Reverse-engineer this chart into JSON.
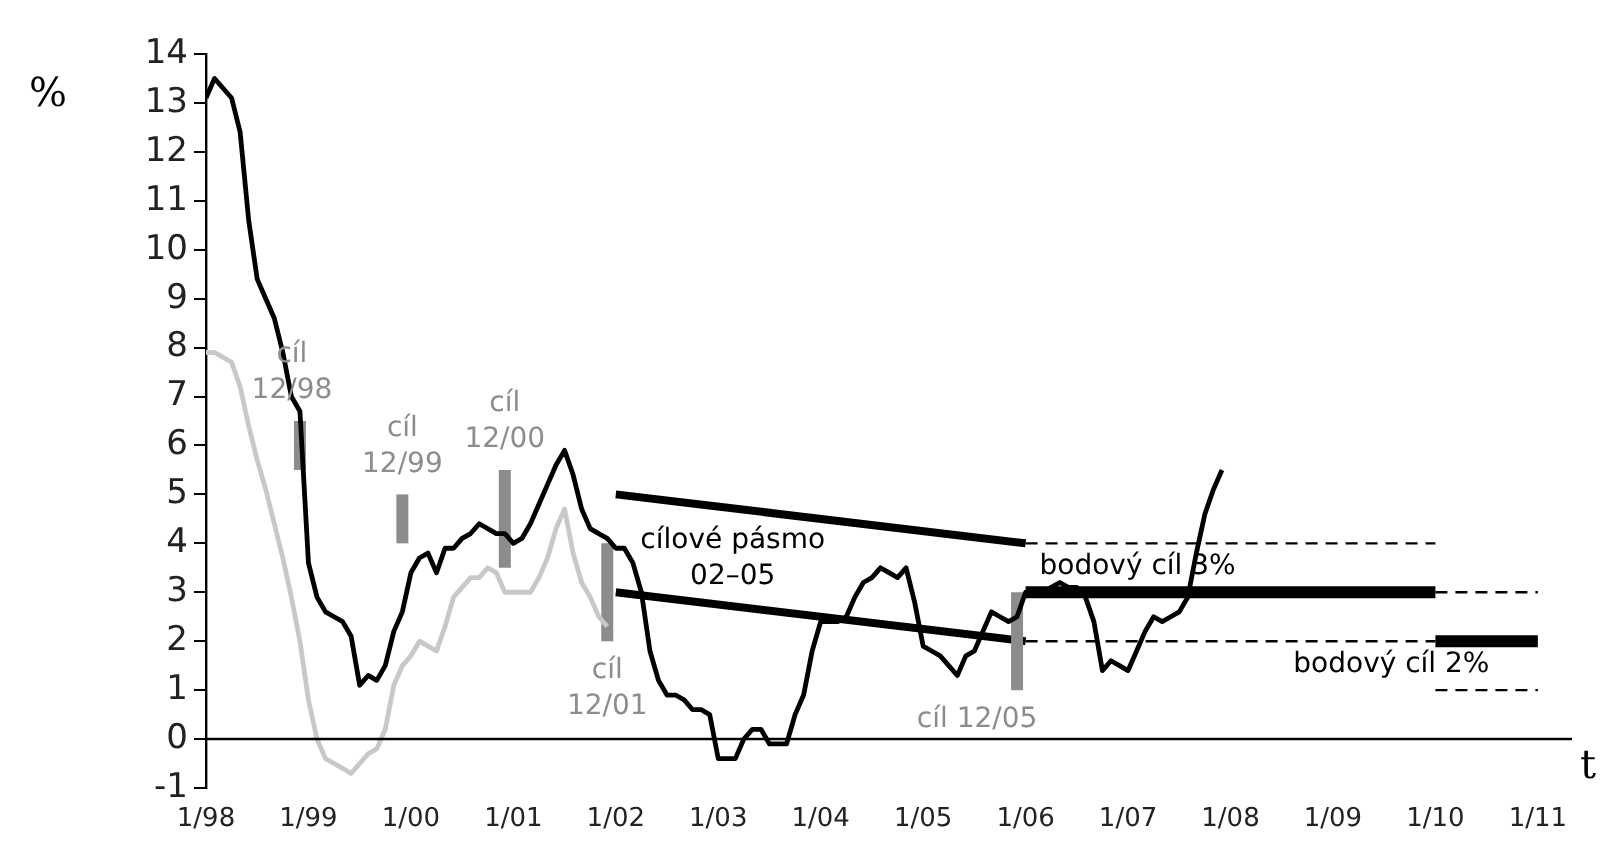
{
  "chart_data": {
    "type": "line",
    "xlabel": "t",
    "ylabel": "%",
    "xlim": [
      "1998-01",
      "2011-05"
    ],
    "ylim": [
      -1,
      14
    ],
    "yticks": [
      -1,
      0,
      1,
      2,
      3,
      4,
      5,
      6,
      7,
      8,
      9,
      10,
      11,
      12,
      13,
      14
    ],
    "xticks": [
      {
        "value": "1998-01",
        "label": "1/98"
      },
      {
        "value": "1999-01",
        "label": "1/99"
      },
      {
        "value": "2000-01",
        "label": "1/00"
      },
      {
        "value": "2001-01",
        "label": "1/01"
      },
      {
        "value": "2002-01",
        "label": "1/02"
      },
      {
        "value": "2003-01",
        "label": "1/03"
      },
      {
        "value": "2004-01",
        "label": "1/04"
      },
      {
        "value": "2005-01",
        "label": "1/05"
      },
      {
        "value": "2006-01",
        "label": "1/06"
      },
      {
        "value": "2007-01",
        "label": "1/07"
      },
      {
        "value": "2008-01",
        "label": "1/08"
      },
      {
        "value": "2009-01",
        "label": "1/09"
      },
      {
        "value": "2010-01",
        "label": "1/10"
      },
      {
        "value": "2011-01",
        "label": "1/11"
      }
    ],
    "grid": false,
    "legend": false,
    "ref_lines": [
      {
        "axis": "y",
        "value": 0,
        "color": "#000000"
      }
    ],
    "x": [
      "1998-01",
      "1998-02",
      "1998-03",
      "1998-04",
      "1998-05",
      "1998-06",
      "1998-07",
      "1998-08",
      "1998-09",
      "1998-10",
      "1998-11",
      "1998-12",
      "1999-01",
      "1999-02",
      "1999-03",
      "1999-04",
      "1999-05",
      "1999-06",
      "1999-07",
      "1999-08",
      "1999-09",
      "1999-10",
      "1999-11",
      "1999-12",
      "2000-01",
      "2000-02",
      "2000-03",
      "2000-04",
      "2000-05",
      "2000-06",
      "2000-07",
      "2000-08",
      "2000-09",
      "2000-10",
      "2000-11",
      "2000-12",
      "2001-01",
      "2001-02",
      "2001-03",
      "2001-04",
      "2001-05",
      "2001-06",
      "2001-07",
      "2001-08",
      "2001-09",
      "2001-10",
      "2001-11",
      "2001-12",
      "2002-01",
      "2002-02",
      "2002-03",
      "2002-04",
      "2002-05",
      "2002-06",
      "2002-07",
      "2002-08",
      "2002-09",
      "2002-10",
      "2002-11",
      "2002-12",
      "2003-01",
      "2003-02",
      "2003-03",
      "2003-04",
      "2003-05",
      "2003-06",
      "2003-07",
      "2003-08",
      "2003-09",
      "2003-10",
      "2003-11",
      "2003-12",
      "2004-01",
      "2004-02",
      "2004-03",
      "2004-04",
      "2004-05",
      "2004-06",
      "2004-07",
      "2004-08",
      "2004-09",
      "2004-10",
      "2004-11",
      "2004-12",
      "2005-01",
      "2005-02",
      "2005-03",
      "2005-04",
      "2005-05",
      "2005-06",
      "2005-07",
      "2005-08",
      "2005-09",
      "2005-10",
      "2005-11",
      "2005-12",
      "2006-01",
      "2006-02",
      "2006-03",
      "2006-04",
      "2006-05",
      "2006-06",
      "2006-07",
      "2006-08",
      "2006-09",
      "2006-10",
      "2006-11",
      "2006-12",
      "2007-01",
      "2007-02",
      "2007-03",
      "2007-04",
      "2007-05",
      "2007-06",
      "2007-07",
      "2007-08",
      "2007-09",
      "2007-10",
      "2007-11",
      "2007-12"
    ],
    "series": [
      {
        "color": "#c8c8c8",
        "x": [
          "1998-01",
          "1998-02",
          "1998-03",
          "1998-04",
          "1998-05",
          "1998-06",
          "1998-07",
          "1998-08",
          "1998-09",
          "1998-10",
          "1998-11",
          "1998-12",
          "1999-01",
          "1999-02",
          "1999-03",
          "1999-04",
          "1999-05",
          "1999-06",
          "1999-07",
          "1999-08",
          "1999-09",
          "1999-10",
          "1999-11",
          "1999-12",
          "2000-01",
          "2000-02",
          "2000-03",
          "2000-04",
          "2000-05",
          "2000-06",
          "2000-07",
          "2000-08",
          "2000-09",
          "2000-10",
          "2000-11",
          "2000-12",
          "2001-01",
          "2001-02",
          "2001-03",
          "2001-04",
          "2001-05",
          "2001-06",
          "2001-07",
          "2001-08",
          "2001-09",
          "2001-10",
          "2001-11",
          "2001-12"
        ],
        "values": [
          7.9,
          7.9,
          7.8,
          7.7,
          7.2,
          6.4,
          5.7,
          5.1,
          4.4,
          3.7,
          2.9,
          2.0,
          0.8,
          0.0,
          -0.4,
          -0.5,
          -0.6,
          -0.7,
          -0.5,
          -0.3,
          -0.2,
          0.2,
          1.1,
          1.5,
          1.7,
          2.0,
          1.9,
          1.8,
          2.3,
          2.9,
          3.1,
          3.3,
          3.3,
          3.5,
          3.4,
          3.0,
          3.0,
          3.0,
          3.0,
          3.3,
          3.7,
          4.3,
          4.7,
          3.8,
          3.2,
          2.9,
          2.5,
          2.3
        ]
      },
      {
        "color": "#000000",
        "values": [
          13.1,
          13.5,
          13.3,
          13.1,
          12.4,
          10.6,
          9.4,
          9.0,
          8.6,
          7.9,
          7.0,
          6.7,
          3.6,
          2.9,
          2.6,
          2.5,
          2.4,
          2.1,
          1.1,
          1.3,
          1.2,
          1.5,
          2.2,
          2.6,
          3.4,
          3.7,
          3.8,
          3.4,
          3.9,
          3.9,
          4.1,
          4.2,
          4.4,
          4.3,
          4.2,
          4.2,
          4.0,
          4.1,
          4.4,
          4.8,
          5.2,
          5.6,
          5.9,
          5.4,
          4.7,
          4.3,
          4.2,
          4.1,
          3.9,
          3.9,
          3.6,
          3.0,
          1.8,
          1.2,
          0.9,
          0.9,
          0.8,
          0.6,
          0.6,
          0.5,
          -0.4,
          -0.4,
          -0.4,
          0.0,
          0.2,
          0.2,
          -0.1,
          -0.1,
          -0.1,
          0.5,
          0.9,
          1.8,
          2.4,
          2.4,
          2.4,
          2.5,
          2.9,
          3.2,
          3.3,
          3.5,
          3.4,
          3.3,
          3.5,
          2.8,
          1.9,
          1.8,
          1.7,
          1.5,
          1.3,
          1.7,
          1.8,
          2.2,
          2.6,
          2.5,
          2.4,
          2.5,
          3.0,
          3.0,
          3.0,
          3.1,
          3.2,
          3.1,
          3.1,
          2.9,
          2.4,
          1.4,
          1.6,
          1.5,
          1.4,
          1.8,
          2.2,
          2.5,
          2.4,
          2.5,
          2.6,
          2.9,
          3.8,
          4.6,
          5.1,
          5.5
        ]
      },
      {
        "name": "cíl\n12/98",
        "color": "#8c8c8c",
        "x": [
          "1998-12",
          "1998-12"
        ],
        "values": [
          5.5,
          6.5
        ]
      },
      {
        "name": "cíl\n12/99",
        "color": "#8c8c8c",
        "x": [
          "1999-12",
          "1999-12"
        ],
        "values": [
          4,
          5
        ]
      },
      {
        "name": "cíl\n12/00",
        "color": "#8c8c8c",
        "x": [
          "2000-12",
          "2000-12"
        ],
        "values": [
          3.5,
          5.5
        ]
      },
      {
        "name": "cíl\n12/01",
        "color": "#8c8c8c",
        "x": [
          "2001-12",
          "2001-12"
        ],
        "values": [
          2,
          4
        ]
      },
      {
        "name": "cíl 12/05",
        "color": "#8c8c8c",
        "x": [
          "2005-12",
          "2005-12"
        ],
        "values": [
          1,
          3
        ]
      },
      {
        "name": "cílové pásmo\n02–05",
        "color": "#000000",
        "x": [
          "2002-01",
          "2006-01"
        ],
        "values": [
          5,
          4
        ]
      },
      {
        "color": "#000000",
        "x": [
          "2002-01",
          "2006-01"
        ],
        "values": [
          3,
          2
        ]
      },
      {
        "color": "#000000",
        "x": [
          "2006-01",
          "2010-01"
        ],
        "values": [
          4,
          4
        ],
        "line_style": "dashed"
      },
      {
        "color": "#000000",
        "x": [
          "2006-01",
          "2010-01"
        ],
        "values": [
          2,
          2
        ],
        "line_style": "dashed"
      },
      {
        "color": "#000000",
        "x": [
          "2010-01",
          "2011-01"
        ],
        "values": [
          3,
          3
        ],
        "line_style": "dashed"
      },
      {
        "color": "#000000",
        "x": [
          "2010-01",
          "2011-01"
        ],
        "values": [
          1,
          1
        ],
        "line_style": "dashed"
      },
      {
        "name": "bodový cíl 3%",
        "color": "#000000",
        "x": [
          "2006-01",
          "2010-01"
        ],
        "values": [
          3,
          3
        ]
      },
      {
        "name": "bodový cíl 2%",
        "color": "#000000",
        "x": [
          "2010-01",
          "2011-01"
        ],
        "values": [
          2,
          2
        ]
      }
    ]
  }
}
